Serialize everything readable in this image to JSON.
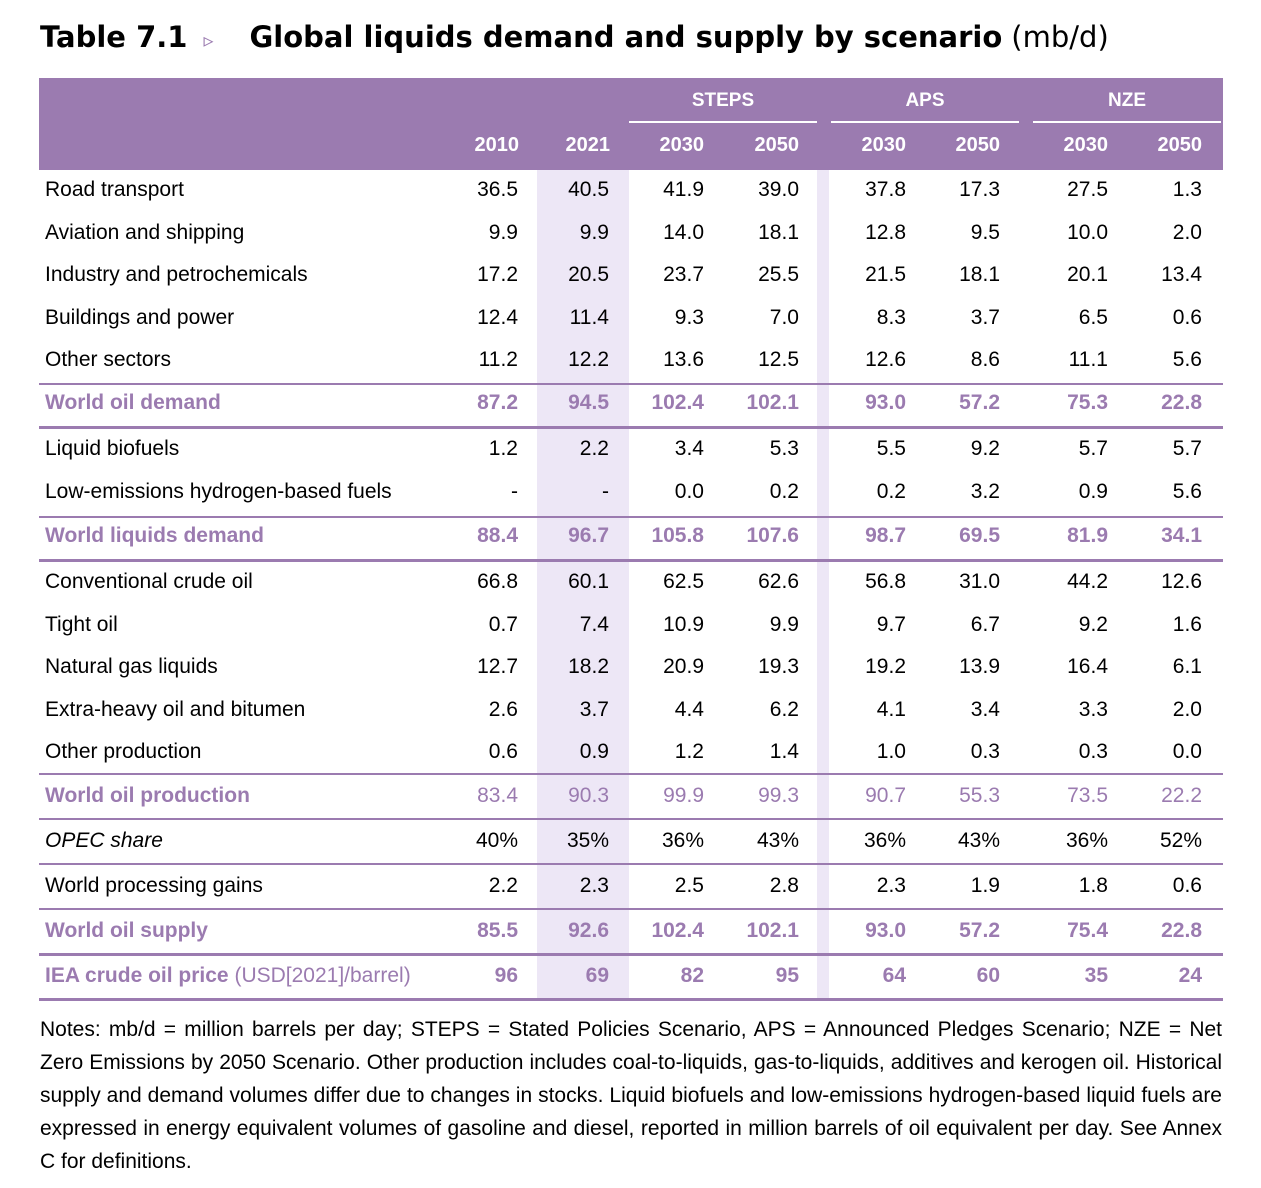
{
  "title": {
    "number": "Table 7.1",
    "arrow": "▹",
    "text": "Global liquids demand and supply by scenario",
    "unit": "(mb/d)"
  },
  "header": {
    "groups": [
      "STEPS",
      "APS",
      "NZE"
    ],
    "years": [
      "2010",
      "2021",
      "2030",
      "2050",
      "2030",
      "2050",
      "2030",
      "2050"
    ]
  },
  "rows": [
    {
      "label": "Road transport",
      "values": [
        "36.5",
        "40.5",
        "41.9",
        "39.0",
        "37.8",
        "17.3",
        "27.5",
        "1.3"
      ]
    },
    {
      "label": "Aviation and shipping",
      "values": [
        "9.9",
        "9.9",
        "14.0",
        "18.1",
        "12.8",
        "9.5",
        "10.0",
        "2.0"
      ]
    },
    {
      "label": "Industry and petrochemicals",
      "values": [
        "17.2",
        "20.5",
        "23.7",
        "25.5",
        "21.5",
        "18.1",
        "20.1",
        "13.4"
      ]
    },
    {
      "label": "Buildings and power",
      "values": [
        "12.4",
        "11.4",
        "9.3",
        "7.0",
        "8.3",
        "3.7",
        "6.5",
        "0.6"
      ]
    },
    {
      "label": "Other sectors",
      "values": [
        "11.2",
        "12.2",
        "13.6",
        "12.5",
        "12.6",
        "8.6",
        "11.1",
        "5.6"
      ]
    },
    {
      "label": "World oil demand",
      "values": [
        "87.2",
        "94.5",
        "102.4",
        "102.1",
        "93.0",
        "57.2",
        "75.3",
        "22.8"
      ]
    },
    {
      "label": "Liquid biofuels",
      "values": [
        "1.2",
        "2.2",
        "3.4",
        "5.3",
        "5.5",
        "9.2",
        "5.7",
        "5.7"
      ]
    },
    {
      "label": "Low-emissions hydrogen-based fuels",
      "values": [
        "-",
        "-",
        "0.0",
        "0.2",
        "0.2",
        "3.2",
        "0.9",
        "5.6"
      ]
    },
    {
      "label": "World liquids demand",
      "values": [
        "88.4",
        "96.7",
        "105.8",
        "107.6",
        "98.7",
        "69.5",
        "81.9",
        "34.1"
      ]
    },
    {
      "label": "Conventional crude oil",
      "values": [
        "66.8",
        "60.1",
        "62.5",
        "62.6",
        "56.8",
        "31.0",
        "44.2",
        "12.6"
      ]
    },
    {
      "label": "Tight oil",
      "values": [
        "0.7",
        "7.4",
        "10.9",
        "9.9",
        "9.7",
        "6.7",
        "9.2",
        "1.6"
      ]
    },
    {
      "label": "Natural gas liquids",
      "values": [
        "12.7",
        "18.2",
        "20.9",
        "19.3",
        "19.2",
        "13.9",
        "16.4",
        "6.1"
      ]
    },
    {
      "label": "Extra-heavy oil and bitumen",
      "values": [
        "2.6",
        "3.7",
        "4.4",
        "6.2",
        "4.1",
        "3.4",
        "3.3",
        "2.0"
      ]
    },
    {
      "label": "Other production",
      "values": [
        "0.6",
        "0.9",
        "1.2",
        "1.4",
        "1.0",
        "0.3",
        "0.3",
        "0.0"
      ]
    },
    {
      "label": "World oil production",
      "values": [
        "83.4",
        "90.3",
        "99.9",
        "99.3",
        "90.7",
        "55.3",
        "73.5",
        "22.2"
      ]
    },
    {
      "label": "OPEC share",
      "values": [
        "40%",
        "35%",
        "36%",
        "43%",
        "36%",
        "43%",
        "36%",
        "52%"
      ]
    },
    {
      "label": "World processing gains",
      "values": [
        "2.2",
        "2.3",
        "2.5",
        "2.8",
        "2.3",
        "1.9",
        "1.8",
        "0.6"
      ]
    },
    {
      "label": "World oil supply",
      "values": [
        "85.5",
        "92.6",
        "102.4",
        "102.1",
        "93.0",
        "57.2",
        "75.4",
        "22.8"
      ]
    },
    {
      "label": "IEA crude oil price",
      "label_suffix": "(USD[2021]/barrel)",
      "values": [
        "96",
        "69",
        "82",
        "95",
        "64",
        "60",
        "35",
        "24"
      ]
    }
  ],
  "notes": "Notes: mb/d = million barrels per day; STEPS = Stated Policies Scenario, APS = Announced Pledges Scenario; NZE = Net Zero Emissions by 2050 Scenario. Other production includes coal-to-liquids, gas-to-liquids, additives and kerogen oil. Historical supply and demand volumes differ due to changes in stocks. Liquid biofuels and low-emissions hydrogen-based liquid fuels are expressed in energy equivalent volumes of gasoline and diesel, reported in million barrels of oil equivalent per day. See Annex C for definitions.",
  "colors": {
    "accent": "#9b7bb0",
    "shade": "#ede7f6"
  }
}
